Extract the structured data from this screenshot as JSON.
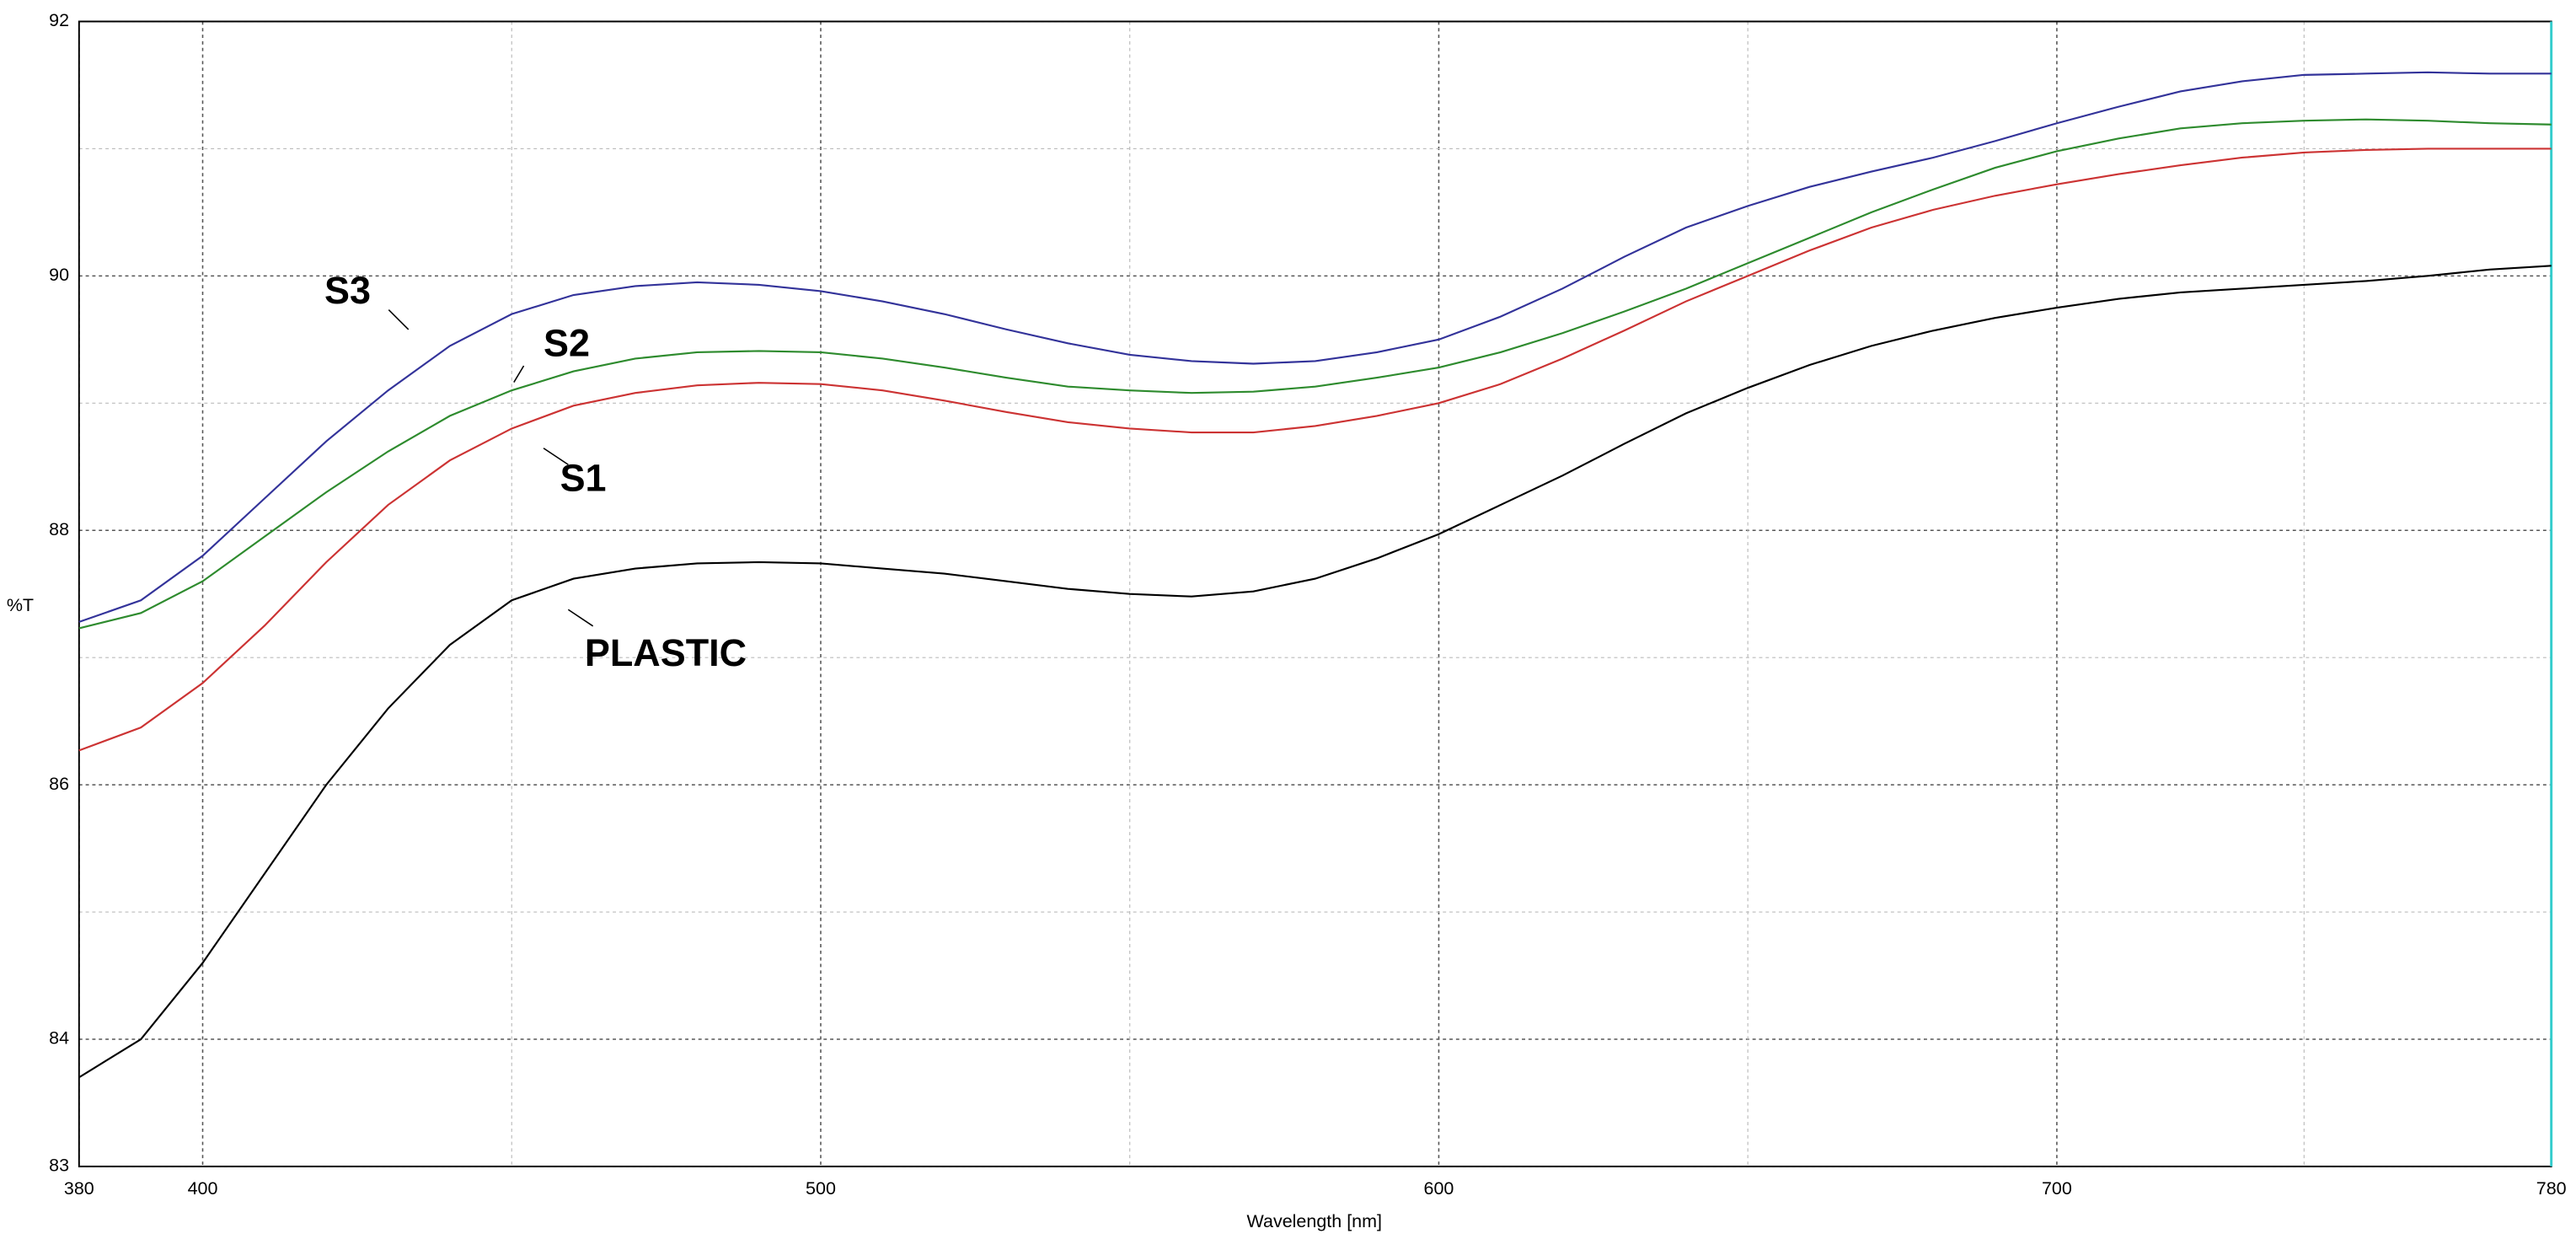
{
  "chart_data": {
    "type": "line",
    "xlabel": "Wavelength [nm]",
    "ylabel": "%T",
    "x": [
      380,
      390,
      400,
      410,
      420,
      430,
      440,
      450,
      460,
      470,
      480,
      490,
      500,
      510,
      520,
      530,
      540,
      550,
      560,
      570,
      580,
      590,
      600,
      610,
      620,
      630,
      640,
      650,
      660,
      670,
      680,
      690,
      700,
      710,
      720,
      730,
      740,
      750,
      760,
      770,
      780
    ],
    "series": [
      {
        "name": "S1",
        "color": "#cc3333",
        "values": [
          86.27,
          86.45,
          86.8,
          87.25,
          87.75,
          88.2,
          88.55,
          88.8,
          88.98,
          89.08,
          89.14,
          89.16,
          89.15,
          89.1,
          89.02,
          88.93,
          88.85,
          88.8,
          88.77,
          88.77,
          88.82,
          88.9,
          89.0,
          89.15,
          89.35,
          89.57,
          89.8,
          90.0,
          90.2,
          90.38,
          90.52,
          90.63,
          90.72,
          90.8,
          90.87,
          90.93,
          90.97,
          90.99,
          91.0,
          91.0,
          91.0
        ]
      },
      {
        "name": "S2",
        "color": "#2e8b2e",
        "values": [
          87.23,
          87.35,
          87.6,
          87.95,
          88.3,
          88.62,
          88.9,
          89.1,
          89.25,
          89.35,
          89.4,
          89.41,
          89.4,
          89.35,
          89.28,
          89.2,
          89.13,
          89.1,
          89.08,
          89.09,
          89.13,
          89.2,
          89.28,
          89.4,
          89.55,
          89.72,
          89.9,
          90.1,
          90.3,
          90.5,
          90.68,
          90.85,
          90.98,
          91.08,
          91.16,
          91.2,
          91.22,
          91.23,
          91.22,
          91.2,
          91.19
        ]
      },
      {
        "name": "S3",
        "color": "#33339a",
        "values": [
          87.28,
          87.45,
          87.8,
          88.25,
          88.7,
          89.1,
          89.45,
          89.7,
          89.85,
          89.92,
          89.95,
          89.93,
          89.88,
          89.8,
          89.7,
          89.58,
          89.47,
          89.38,
          89.33,
          89.31,
          89.33,
          89.4,
          89.5,
          89.68,
          89.9,
          90.15,
          90.38,
          90.55,
          90.7,
          90.82,
          90.93,
          91.06,
          91.2,
          91.33,
          91.45,
          91.53,
          91.58,
          91.59,
          91.6,
          91.59,
          91.59
        ]
      },
      {
        "name": "PLASTIC",
        "color": "#000000",
        "values": [
          83.7,
          84.0,
          84.6,
          85.3,
          86.0,
          86.6,
          87.1,
          87.45,
          87.62,
          87.7,
          87.74,
          87.75,
          87.74,
          87.7,
          87.66,
          87.6,
          87.54,
          87.5,
          87.48,
          87.52,
          87.62,
          87.78,
          87.97,
          88.2,
          88.43,
          88.68,
          88.92,
          89.12,
          89.3,
          89.45,
          89.57,
          89.67,
          89.75,
          89.82,
          89.87,
          89.9,
          89.93,
          89.96,
          90.0,
          90.05,
          90.08
        ]
      }
    ],
    "xlim": [
      380,
      780
    ],
    "xticks": [
      380,
      400,
      500,
      600,
      700,
      780
    ],
    "ylim": [
      83,
      92
    ],
    "yticks": [
      83,
      84,
      86,
      88,
      90,
      92
    ],
    "grid": true
  }
}
